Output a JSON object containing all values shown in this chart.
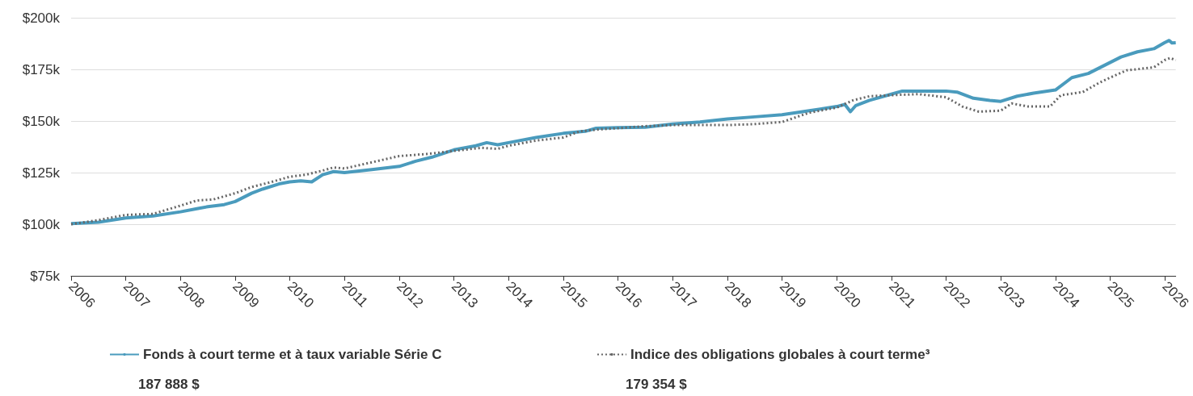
{
  "chart_data": {
    "type": "line",
    "xlim": [
      2006,
      2026.2
    ],
    "xticks": [
      2006,
      2007,
      2008,
      2009,
      2010,
      2011,
      2012,
      2013,
      2014,
      2015,
      2016,
      2017,
      2018,
      2019,
      2020,
      2021,
      2022,
      2023,
      2024,
      2025,
      2026
    ],
    "ylim": [
      75,
      200
    ],
    "yticks": [
      {
        "value": 75,
        "label": "$75k"
      },
      {
        "value": 100,
        "label": "$100k"
      },
      {
        "value": 125,
        "label": "$125k"
      },
      {
        "value": 150,
        "label": "$150k"
      },
      {
        "value": 175,
        "label": "$175k"
      },
      {
        "value": 200,
        "label": "$200k"
      }
    ],
    "grid": "y",
    "legend": "bottom",
    "marker": "none",
    "series": [
      {
        "name": "Fonds à court terme et à taux variable Série C",
        "color": "#4a9bbd",
        "line_style": "solid",
        "x": [
          2006,
          2006.5,
          2007,
          2007.5,
          2008,
          2008.3,
          2008.5,
          2008.8,
          2009,
          2009.3,
          2009.5,
          2009.8,
          2010,
          2010.2,
          2010.4,
          2010.6,
          2010.8,
          2011,
          2011.5,
          2012,
          2012.3,
          2012.6,
          2013,
          2013.4,
          2013.6,
          2013.8,
          2014,
          2014.5,
          2015,
          2015.4,
          2015.6,
          2016,
          2016.5,
          2017,
          2017.5,
          2018,
          2018.5,
          2019,
          2019.5,
          2020,
          2020.15,
          2020.25,
          2020.35,
          2020.6,
          2021,
          2021.2,
          2021.5,
          2022,
          2022.2,
          2022.5,
          2022.8,
          2023,
          2023.3,
          2023.6,
          2024,
          2024.3,
          2024.6,
          2024.9,
          2025.2,
          2025.5,
          2025.8,
          2026,
          2026.08,
          2026.13,
          2026.2
        ],
        "values": [
          100.3,
          101,
          103,
          104,
          106,
          107.5,
          108.5,
          109.5,
          111,
          115,
          117,
          119.5,
          120.5,
          121,
          120.5,
          124,
          125.5,
          125,
          126.5,
          128,
          130.5,
          132.5,
          136,
          138,
          139.5,
          138.5,
          139.5,
          142,
          144,
          145,
          146.5,
          146.8,
          147,
          148.5,
          149.5,
          151,
          152,
          153,
          155,
          157,
          158,
          154.5,
          157.5,
          160,
          163,
          164.5,
          164.5,
          164.5,
          164,
          161,
          160,
          159.5,
          162,
          163.5,
          165,
          171,
          173,
          177,
          181,
          183.5,
          185,
          188,
          189,
          187.8,
          187.9
        ]
      },
      {
        "name": "Indice des obligations globales à court terme³",
        "color": "#666666",
        "line_style": "dotted",
        "x": [
          2006,
          2006.5,
          2007,
          2007.5,
          2008,
          2008.3,
          2008.6,
          2009,
          2009.3,
          2009.6,
          2010,
          2010.3,
          2010.6,
          2010.8,
          2011,
          2011.5,
          2012,
          2012.5,
          2013,
          2013.5,
          2013.8,
          2014,
          2014.5,
          2015,
          2015.3,
          2015.7,
          2016,
          2016.5,
          2017,
          2017.5,
          2018,
          2018.5,
          2019,
          2019.5,
          2020,
          2020.3,
          2020.6,
          2021,
          2021.5,
          2022,
          2022.3,
          2022.6,
          2023,
          2023.2,
          2023.5,
          2023.9,
          2024.1,
          2024.5,
          2024.8,
          2025,
          2025.3,
          2025.8,
          2026,
          2026.1,
          2026.2
        ],
        "values": [
          100,
          102,
          104.5,
          105,
          109,
          111.5,
          112,
          115,
          118,
          120,
          123,
          124,
          126,
          127.5,
          127,
          130,
          133,
          134,
          135.5,
          137,
          136.5,
          138,
          140.5,
          142,
          145,
          146,
          146.5,
          147.5,
          148,
          148,
          148,
          148.5,
          149.5,
          154,
          156.5,
          160,
          162,
          162.5,
          163,
          161.5,
          157,
          154.5,
          155,
          158.5,
          157,
          157,
          162.5,
          164,
          168.5,
          171,
          174.5,
          176,
          179.5,
          180.5,
          179.4
        ]
      }
    ],
    "annotations": [
      "187 888 $",
      "179 354 $"
    ]
  }
}
